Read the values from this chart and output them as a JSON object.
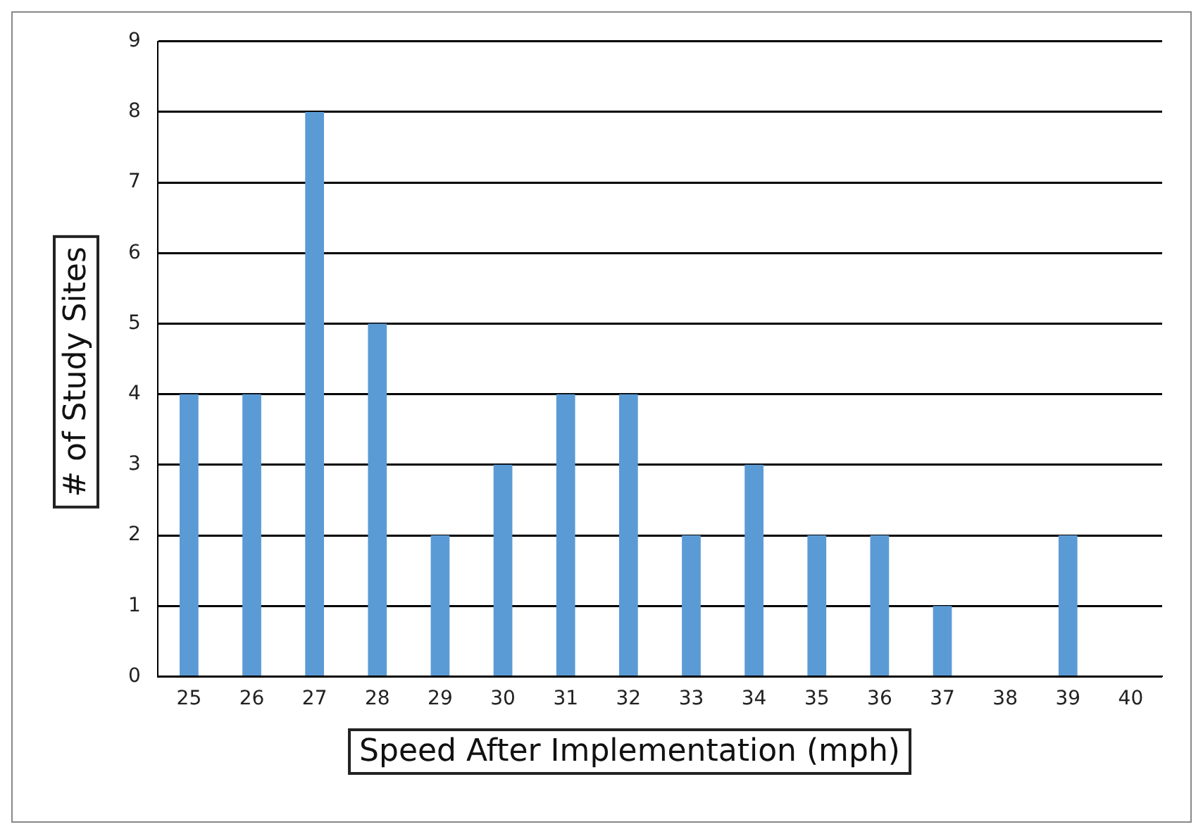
{
  "chart_data": {
    "type": "bar",
    "xlabel": "Speed After Implementation (mph)",
    "ylabel": "# of Study Sites",
    "categories": [
      "25",
      "26",
      "27",
      "28",
      "29",
      "30",
      "31",
      "32",
      "33",
      "34",
      "35",
      "36",
      "37",
      "38",
      "39",
      "40"
    ],
    "values": [
      4,
      4,
      8,
      5,
      2,
      3,
      4,
      4,
      2,
      3,
      2,
      2,
      1,
      0,
      2,
      0
    ],
    "color": "#5b9bd5",
    "ylim": [
      0,
      9
    ],
    "yticks": [
      0,
      1,
      2,
      3,
      4,
      5,
      6,
      7,
      8,
      9
    ],
    "grid": "y",
    "legend": false
  }
}
